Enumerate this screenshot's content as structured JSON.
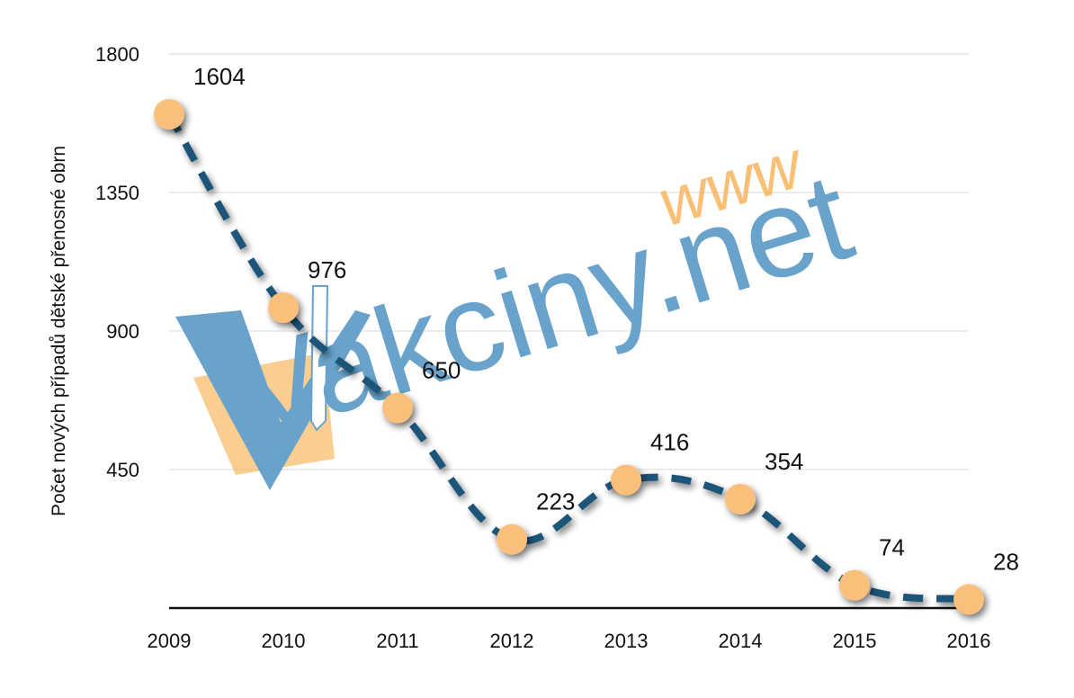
{
  "chart_data": {
    "type": "line",
    "title": "",
    "xlabel": "",
    "ylabel": "Počet nových případů dětské přenosné obrn",
    "categories": [
      "2009",
      "2010",
      "2011",
      "2012",
      "2013",
      "2014",
      "2015",
      "2016"
    ],
    "values": [
      1604,
      976,
      650,
      223,
      416,
      354,
      74,
      28
    ],
    "data_labels": [
      "1604",
      "976",
      "650",
      "223",
      "416",
      "354",
      "74",
      "28"
    ],
    "y_ticks": [
      450,
      900,
      1350,
      1800
    ],
    "y_tick_labels": [
      "450",
      "900",
      "1350",
      "1800"
    ],
    "ylim": [
      0,
      1800
    ],
    "grid": true,
    "line_style": "dashed",
    "colors": {
      "line": "#1f5478",
      "marker": "#fbbf7c",
      "grid": "#d9d9d9",
      "axis": "#111111"
    }
  },
  "watermark": {
    "prefix": "www",
    "main": "Vakciny.net",
    "colors": {
      "blue": "#4f93c2",
      "orange": "#f8b45d"
    }
  }
}
